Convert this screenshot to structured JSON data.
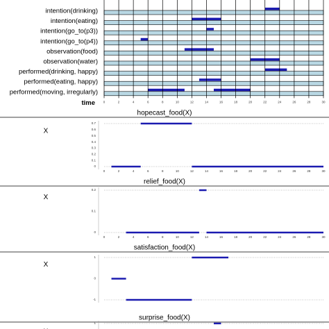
{
  "chart_data": [
    {
      "type": "timeline",
      "x_label": "time",
      "xlim": [
        0,
        30
      ],
      "xticks": [
        0,
        2,
        4,
        6,
        8,
        10,
        12,
        14,
        16,
        18,
        20,
        22,
        24,
        26,
        28,
        30
      ],
      "color": "#1b1bb0",
      "row_color": "#b9d8e4",
      "rows": [
        {
          "label": "intention(drinking)",
          "segments": [
            [
              22,
              24
            ]
          ]
        },
        {
          "label": "intention(eating)",
          "segments": [
            [
              12,
              16
            ]
          ]
        },
        {
          "label": "intention(go_to(p3))",
          "segments": [
            [
              14,
              15
            ]
          ]
        },
        {
          "label": "intention(go_to(p4))",
          "segments": [
            [
              5,
              6
            ]
          ]
        },
        {
          "label": "observation(food)",
          "segments": [
            [
              11,
              15
            ]
          ]
        },
        {
          "label": "observation(water)",
          "segments": [
            [
              20,
              24
            ]
          ]
        },
        {
          "label": "performed(drinking, happy)",
          "segments": [
            [
              22,
              25
            ]
          ]
        },
        {
          "label": "performed(eating, happy)",
          "segments": [
            [
              13,
              16
            ]
          ]
        },
        {
          "label": "performed(moving, irregularly)",
          "segments": [
            [
              6,
              11
            ],
            [
              15,
              20
            ]
          ]
        }
      ]
    },
    {
      "type": "line",
      "title": "hopecast_food(X)",
      "y_label": "X",
      "color": "#1b1bb0",
      "xlim": [
        0,
        30
      ],
      "xticks": [
        0,
        2,
        4,
        6,
        8,
        10,
        12,
        14,
        16,
        18,
        20,
        22,
        24,
        26,
        28,
        30
      ],
      "ylim": [
        0,
        0.7
      ],
      "yticks": [
        0,
        0.1,
        0.2,
        0.3,
        0.4,
        0.5,
        0.6,
        0.7
      ],
      "x": [
        1,
        5,
        5,
        5,
        12,
        12,
        12,
        30
      ],
      "values": [
        0,
        0,
        null,
        0.7,
        0.7,
        null,
        0,
        0
      ]
    },
    {
      "type": "line",
      "title": "relief_food(X)",
      "y_label": "X",
      "color": "#1b1bb0",
      "xlim": [
        0,
        30
      ],
      "xticks": [
        0,
        2,
        4,
        6,
        8,
        10,
        12,
        14,
        16,
        18,
        20,
        22,
        24,
        26,
        28,
        30
      ],
      "ylim": [
        0,
        0.2
      ],
      "yticks": [
        0,
        0.1,
        0.2
      ],
      "x": [
        3,
        13,
        13,
        13,
        14,
        14,
        14,
        30
      ],
      "values": [
        0,
        0,
        null,
        0.2,
        0.2,
        null,
        0,
        0
      ]
    },
    {
      "type": "line",
      "title": "satisfaction_food(X)",
      "y_label": "X",
      "color": "#1b1bb0",
      "xlim": [
        0,
        30
      ],
      "xticks": [],
      "ylim": [
        -1,
        1
      ],
      "yticks": [
        -1,
        0,
        1
      ],
      "x": [
        1,
        3,
        3,
        3,
        12,
        12,
        12,
        17
      ],
      "values": [
        0,
        0,
        null,
        -1,
        -1,
        null,
        1,
        1
      ]
    },
    {
      "type": "line",
      "title": "surprise_food(X)",
      "y_label": "X",
      "color": "#1b1bb0",
      "xlim": [
        0,
        30
      ],
      "xticks": [],
      "ylim": [
        0,
        1
      ],
      "yticks": [
        1
      ],
      "x": [
        15,
        16
      ],
      "values": [
        1,
        1
      ]
    }
  ]
}
